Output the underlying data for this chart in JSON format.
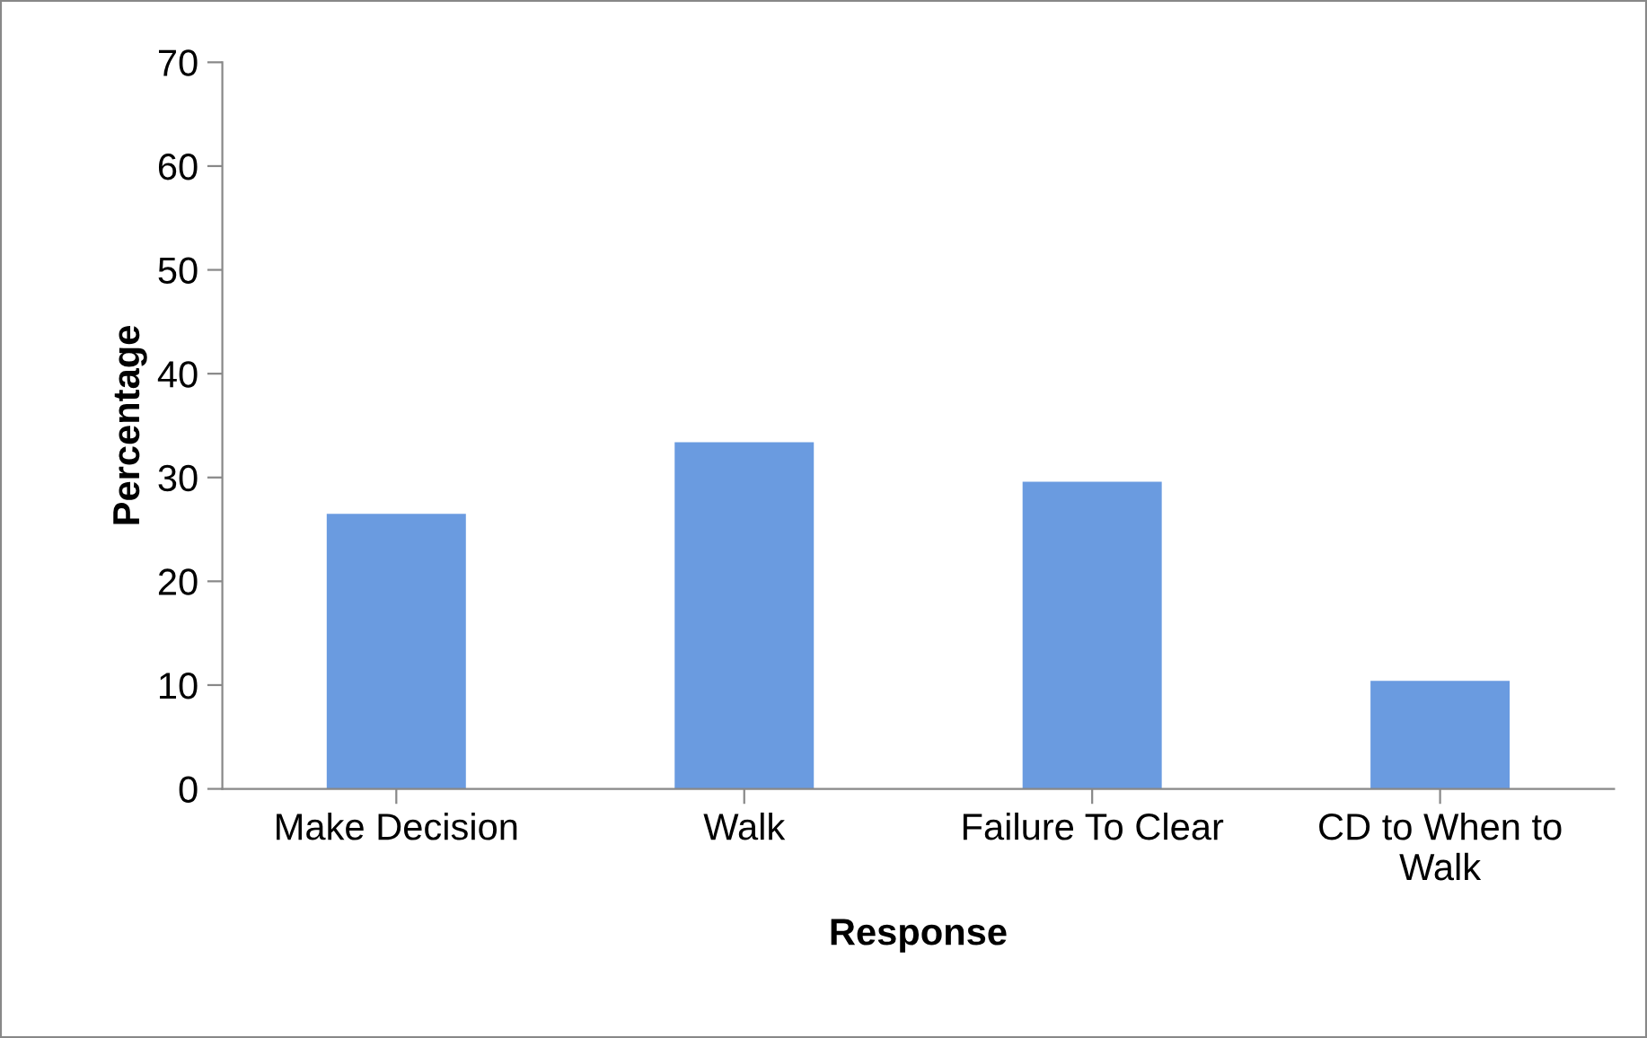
{
  "chart_data": {
    "type": "bar",
    "xlabel": "Response",
    "ylabel": "Percentage",
    "categories": [
      "Make Decision",
      "Walk",
      "Failure To Clear",
      "CD to When to Walk"
    ],
    "values": [
      26.5,
      33.4,
      29.6,
      10.4
    ],
    "color": "#6a9be0",
    "ylim": [
      0,
      70
    ],
    "yticks": [
      0,
      10,
      20,
      30,
      40,
      50,
      60,
      70
    ],
    "grid": false,
    "legend": false
  }
}
